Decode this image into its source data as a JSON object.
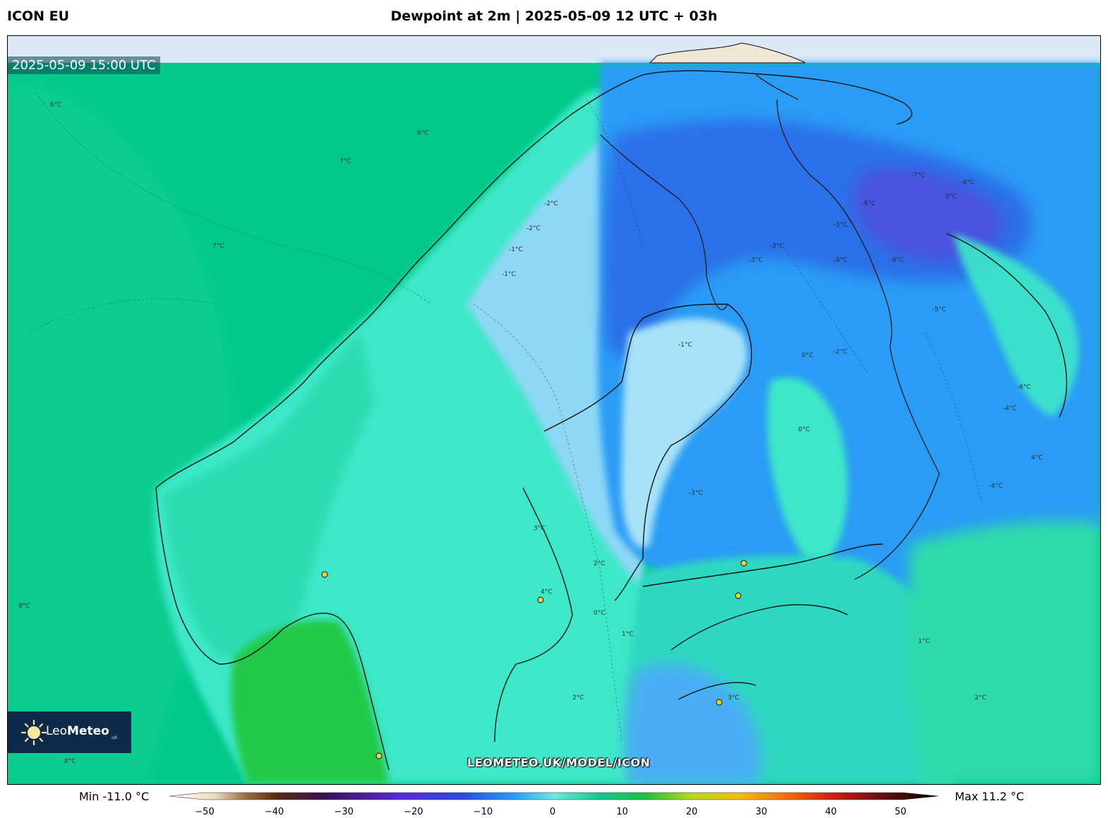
{
  "model_name": "ICON EU",
  "title": "Dewpoint at 2m | 2025-05-09 12 UTC + 03h",
  "valid_time": "2025-05-09 15:00 UTC",
  "logo": {
    "text_light": "Leo",
    "text_bold": "Meteo",
    "suffix": ".uk",
    "icon": "sun-icon"
  },
  "watermark": "LEOMETEO.UK/MODEL/ICON",
  "colorbar": {
    "min_label": "Min -11.0 °C",
    "max_label": "Max 11.2 °C",
    "range": [
      -50,
      50
    ],
    "ticks": [
      "−50",
      "−40",
      "−30",
      "−20",
      "−10",
      "0",
      "10",
      "20",
      "30",
      "40",
      "50"
    ],
    "tick_values": [
      -50,
      -40,
      -30,
      -20,
      -10,
      0,
      10,
      20,
      30,
      40,
      50
    ]
  },
  "contour_labels": [
    "-2°C",
    "-1°C",
    "-2°C",
    "-3°C",
    "-4°C",
    "-7°C",
    "-6°C",
    "-8°C",
    "-8°C",
    "-8°C",
    "-9°C",
    "-6°C",
    "-3°C",
    "-2°C",
    "-1°C",
    "0°C",
    "2°C",
    "3°C",
    "4°C",
    "6°C",
    "7°C",
    "8°C",
    "6°C",
    "7°C",
    "8°C",
    "2°C",
    "1°C",
    "0°C",
    "-4°C",
    "-5°C",
    "-3°C",
    "-2°C",
    "-1°C",
    "0°C",
    "1°C",
    "2°C",
    "3°C",
    "4°C"
  ],
  "colors": {
    "ocean": "#00c98a",
    "land_cool": "#3ee8c8",
    "light_blue": "#8fd8f5",
    "blue": "#2a9cf5",
    "dark_blue": "#2b6fe8",
    "purple_blue": "#4a52e0",
    "green_warm": "#22c94a",
    "top_band": "#dce8f5"
  }
}
